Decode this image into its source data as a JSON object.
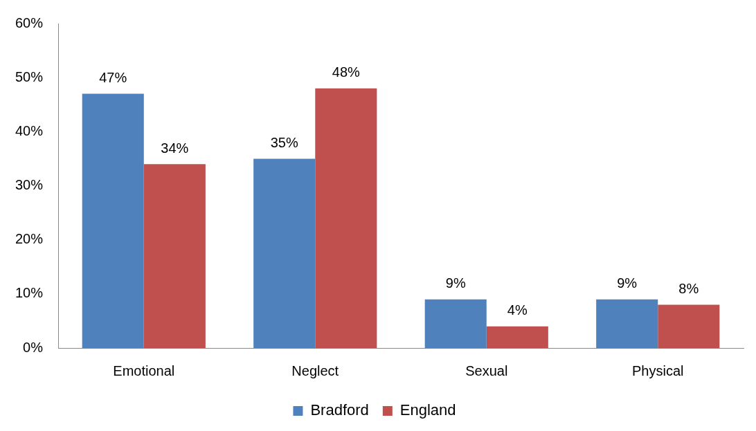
{
  "chart_data": {
    "type": "bar",
    "categories": [
      "Emotional",
      "Neglect",
      "Sexual",
      "Physical"
    ],
    "series": [
      {
        "name": "Bradford",
        "color": "#4f81bd",
        "values": [
          47,
          35,
          9,
          9
        ],
        "value_labels": [
          "47%",
          "35%",
          "9%",
          "9%"
        ]
      },
      {
        "name": "England",
        "color": "#c0504d",
        "values": [
          34,
          48,
          4,
          8
        ],
        "value_labels": [
          "34%",
          "48%",
          "4%",
          "8%"
        ]
      }
    ],
    "ylim": [
      0,
      60
    ],
    "yticks": [
      {
        "value": 0,
        "label": "0%"
      },
      {
        "value": 10,
        "label": "10%"
      },
      {
        "value": 20,
        "label": "20%"
      },
      {
        "value": 30,
        "label": "30%"
      },
      {
        "value": 40,
        "label": "40%"
      },
      {
        "value": 50,
        "label": "50%"
      },
      {
        "value": 60,
        "label": "60%"
      }
    ],
    "grid": false,
    "legend": "bottom"
  }
}
